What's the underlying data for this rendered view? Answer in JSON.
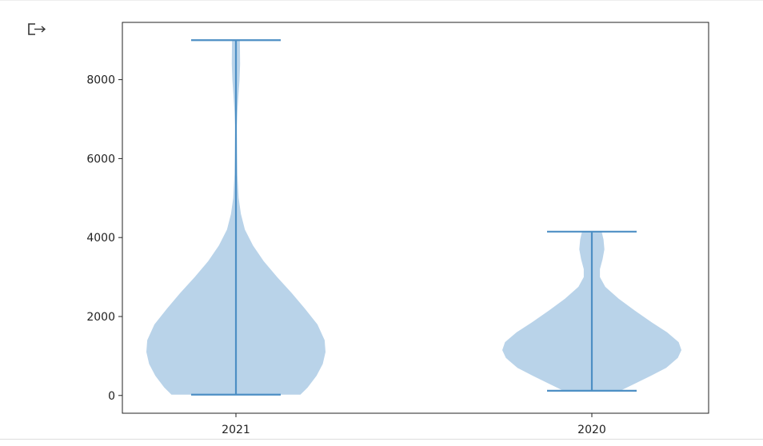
{
  "output_icon": "output-arrow-icon",
  "colors": {
    "violin_fill": "#b9d3e9",
    "stat_line": "#4d8fc4",
    "axis": "#222222",
    "background": "#ffffff"
  },
  "chart_data": {
    "type": "violin",
    "title": "",
    "xlabel": "",
    "ylabel": "",
    "categories": [
      "2021",
      "2020"
    ],
    "ylim": [
      -450,
      9450
    ],
    "yticks": [
      0,
      2000,
      4000,
      6000,
      8000
    ],
    "ytick_labels": [
      "0",
      "2000",
      "4000",
      "6000",
      "8000"
    ],
    "grid": false,
    "series": [
      {
        "category": "2021",
        "min": 20,
        "max": 9000,
        "density": [
          [
            20,
            0.72
          ],
          [
            200,
            0.8
          ],
          [
            500,
            0.9
          ],
          [
            800,
            0.97
          ],
          [
            1100,
            1.0
          ],
          [
            1400,
            0.99
          ],
          [
            1800,
            0.91
          ],
          [
            2200,
            0.77
          ],
          [
            2600,
            0.62
          ],
          [
            3000,
            0.46
          ],
          [
            3400,
            0.31
          ],
          [
            3800,
            0.19
          ],
          [
            4200,
            0.1
          ],
          [
            4600,
            0.055
          ],
          [
            5000,
            0.03
          ],
          [
            5600,
            0.016
          ],
          [
            6200,
            0.012
          ],
          [
            6800,
            0.008
          ],
          [
            7200,
            0.016
          ],
          [
            7600,
            0.028
          ],
          [
            8000,
            0.04
          ],
          [
            8400,
            0.046
          ],
          [
            8800,
            0.045
          ],
          [
            9000,
            0.044
          ]
        ]
      },
      {
        "category": "2020",
        "min": 120,
        "max": 4150,
        "density": [
          [
            120,
            0.32
          ],
          [
            300,
            0.48
          ],
          [
            500,
            0.66
          ],
          [
            700,
            0.83
          ],
          [
            950,
            0.96
          ],
          [
            1150,
            1.0
          ],
          [
            1350,
            0.97
          ],
          [
            1600,
            0.84
          ],
          [
            1850,
            0.67
          ],
          [
            2150,
            0.48
          ],
          [
            2450,
            0.3
          ],
          [
            2750,
            0.15
          ],
          [
            3000,
            0.09
          ],
          [
            3200,
            0.09
          ],
          [
            3450,
            0.12
          ],
          [
            3700,
            0.14
          ],
          [
            3950,
            0.13
          ],
          [
            4150,
            0.11
          ]
        ]
      }
    ]
  }
}
